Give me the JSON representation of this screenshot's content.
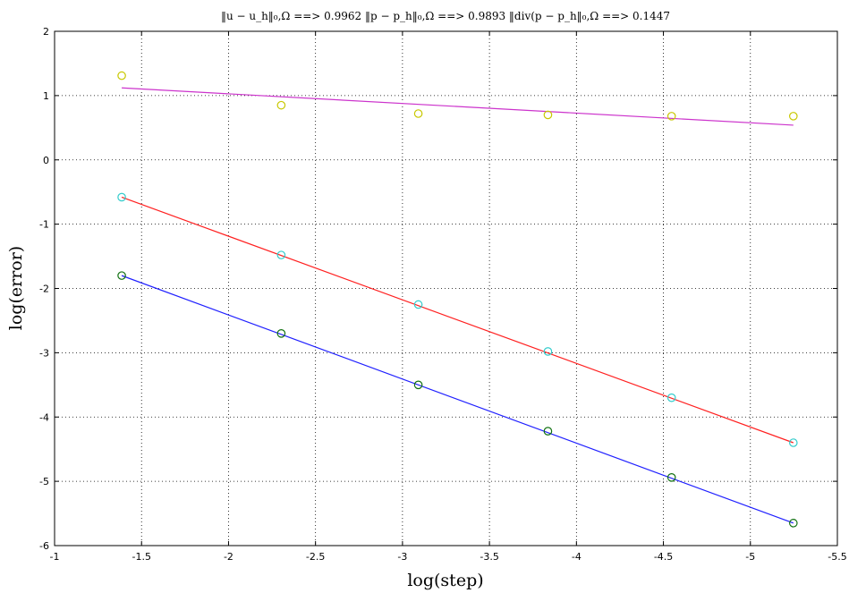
{
  "chart_data": {
    "type": "scatter",
    "title": "‖u − u_h‖₀,Ω ==> 0.9962    ‖p − p_h‖₀,Ω ==> 0.9893    ‖div(p − p_h‖₀,Ω ==> 0.1447",
    "xlabel": "log(step)",
    "ylabel": "log(error)",
    "xlim": [
      -1,
      -5.5
    ],
    "ylim": [
      -6,
      2
    ],
    "x_reversed": true,
    "grid": true,
    "x_ticks": [
      "-1",
      "-1.5",
      "-2",
      "-2.5",
      "-3",
      "-3.5",
      "-4",
      "-4.5",
      "-5",
      "-5.5"
    ],
    "y_ticks": [
      "2",
      "1",
      "0",
      "-1",
      "-2",
      "-3",
      "-4",
      "-5",
      "-6"
    ],
    "x": [
      -1.386,
      -2.303,
      -3.091,
      -3.836,
      -4.547,
      -5.247
    ],
    "series": [
      {
        "markers": [
          1.31,
          0.85,
          0.72,
          0.7,
          0.68,
          0.68
        ],
        "marker_color": "#c8c800",
        "fit_line": [
          1.12,
          0.54
        ],
        "line_color": "#cc33cc"
      },
      {
        "markers": [
          -0.58,
          -1.48,
          -2.25,
          -2.98,
          -3.7,
          -4.4
        ],
        "marker_color": "#33cccc",
        "fit_line": [
          -0.58,
          -4.4
        ],
        "line_color": "#ff2020"
      },
      {
        "markers": [
          -1.8,
          -2.7,
          -3.5,
          -4.22,
          -4.94,
          -5.65
        ],
        "marker_color": "#107010",
        "fit_line": [
          -1.8,
          -5.65
        ],
        "line_color": "#2020ff"
      }
    ]
  }
}
